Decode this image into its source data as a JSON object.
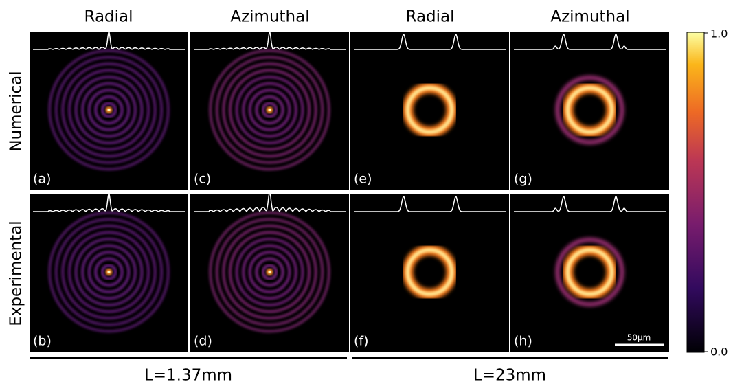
{
  "columns": [
    "Radial",
    "Azimuthal",
    "Radial",
    "Azimuthal"
  ],
  "rows": [
    "Numerical",
    "Experimental"
  ],
  "panel_labels": [
    [
      "(a)",
      "(c)",
      "(e)",
      "(g)"
    ],
    [
      "(b)",
      "(d)",
      "(f)",
      "(h)"
    ]
  ],
  "colorbar": {
    "max": "1.0",
    "min": "0.0"
  },
  "scale_bar": "50µm",
  "groups": [
    "L=1.37mm",
    "L=23mm"
  ]
}
